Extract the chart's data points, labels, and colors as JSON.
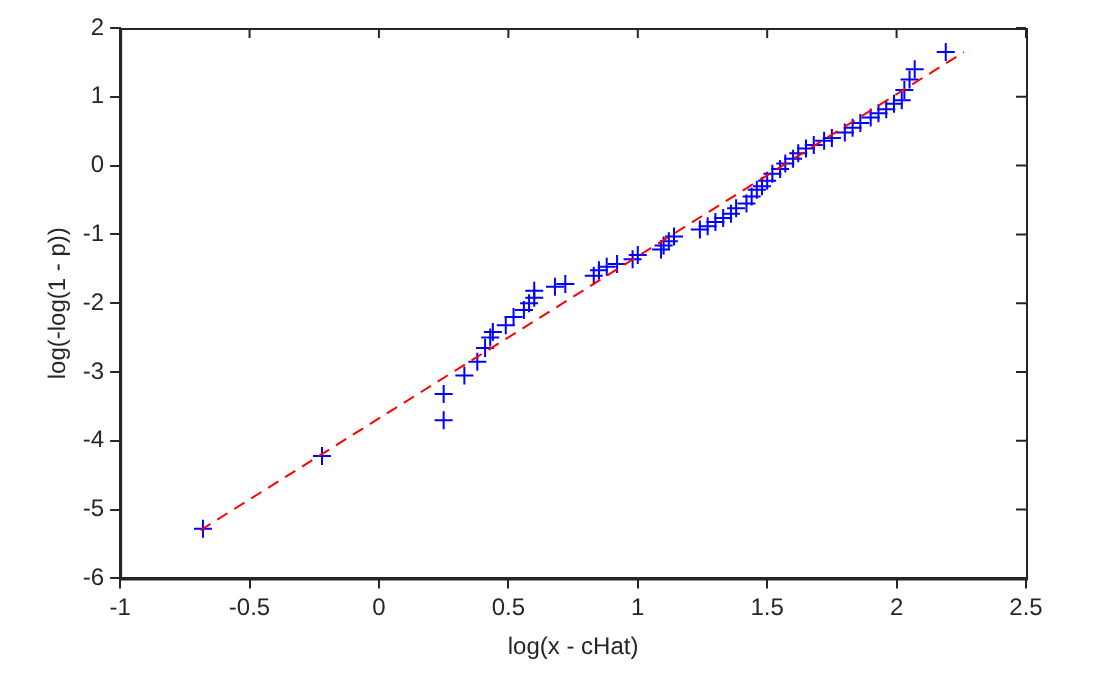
{
  "chart_data": {
    "type": "scatter",
    "xlabel": "log(x - cHat)",
    "ylabel": "log(-log(1 - p))",
    "xlim": [
      -1,
      2.5
    ],
    "xticks": [
      -1,
      -0.5,
      0,
      0.5,
      1,
      1.5,
      2,
      2.5
    ],
    "ylim": [
      -6,
      2
    ],
    "yticks": [
      -6,
      -5,
      -4,
      -3,
      -2,
      -1,
      0,
      1,
      2
    ],
    "grid": false,
    "legend": false,
    "marker": "cross",
    "series": [
      {
        "type": "line",
        "color": "#ff0000",
        "line_style": "dashed",
        "marker": "none",
        "x": [
          -0.69,
          2.26
        ],
        "values": [
          -5.3,
          1.65
        ]
      },
      {
        "type": "scatter",
        "color": "#0000ff",
        "x": [
          -0.68,
          -0.22,
          0.25,
          0.25,
          0.33,
          0.38,
          0.41,
          0.43,
          0.44,
          0.49,
          0.52,
          0.56,
          0.58,
          0.6,
          0.6,
          0.68,
          0.72,
          0.83,
          0.85,
          0.88,
          0.92,
          0.98,
          1.0,
          1.09,
          1.1,
          1.12,
          1.14,
          1.24,
          1.27,
          1.3,
          1.33,
          1.36,
          1.38,
          1.42,
          1.44,
          1.46,
          1.48,
          1.5,
          1.52,
          1.55,
          1.57,
          1.6,
          1.62,
          1.65,
          1.68,
          1.72,
          1.75,
          1.8,
          1.83,
          1.86,
          1.9,
          1.93,
          1.96,
          1.99,
          2.02,
          2.03,
          2.05,
          2.07,
          2.19
        ],
        "values": [
          -5.28,
          -4.22,
          -3.32,
          -3.7,
          -3.05,
          -2.85,
          -2.65,
          -2.5,
          -2.42,
          -2.32,
          -2.2,
          -2.1,
          -2.0,
          -1.92,
          -1.82,
          -1.76,
          -1.72,
          -1.6,
          -1.52,
          -1.47,
          -1.43,
          -1.36,
          -1.3,
          -1.22,
          -1.16,
          -1.1,
          -1.03,
          -0.93,
          -0.88,
          -0.82,
          -0.76,
          -0.7,
          -0.62,
          -0.55,
          -0.45,
          -0.35,
          -0.3,
          -0.22,
          -0.12,
          -0.05,
          0.03,
          0.1,
          0.18,
          0.25,
          0.3,
          0.36,
          0.4,
          0.48,
          0.55,
          0.62,
          0.7,
          0.76,
          0.82,
          0.9,
          0.95,
          1.1,
          1.25,
          1.4,
          1.65
        ]
      }
    ]
  }
}
